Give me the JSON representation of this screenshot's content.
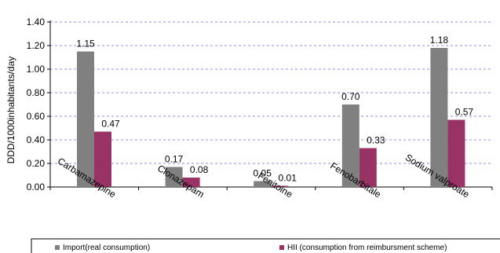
{
  "chart_data": {
    "type": "bar",
    "title": "",
    "xlabel": "",
    "ylabel": "DDD/1000inhabitants/day",
    "ylim": [
      0,
      1.4
    ],
    "yticks": [
      "0.00",
      "0.20",
      "0.40",
      "0.60",
      "0.80",
      "1.00",
      "1.20",
      "1.40"
    ],
    "grid": true,
    "legend_position": "bottom",
    "categories": [
      "Carbamazepine",
      "Clonazepam",
      "Fenitoine",
      "Fenobarbitale",
      "Sodium valproate"
    ],
    "series": [
      {
        "name": "Import(real consumption)",
        "color": "#808080",
        "values": [
          1.15,
          0.17,
          0.05,
          0.7,
          1.18
        ],
        "labels": [
          "1.15",
          "0.17",
          "0.05",
          "0.70",
          "1.18"
        ]
      },
      {
        "name": "HII (consumption from reimbursment scheme)",
        "color": "#993366",
        "values": [
          0.47,
          0.08,
          0.01,
          0.33,
          0.57
        ],
        "labels": [
          "0.47",
          "0.08",
          "0.01",
          "0.33",
          "0.57"
        ]
      }
    ]
  }
}
